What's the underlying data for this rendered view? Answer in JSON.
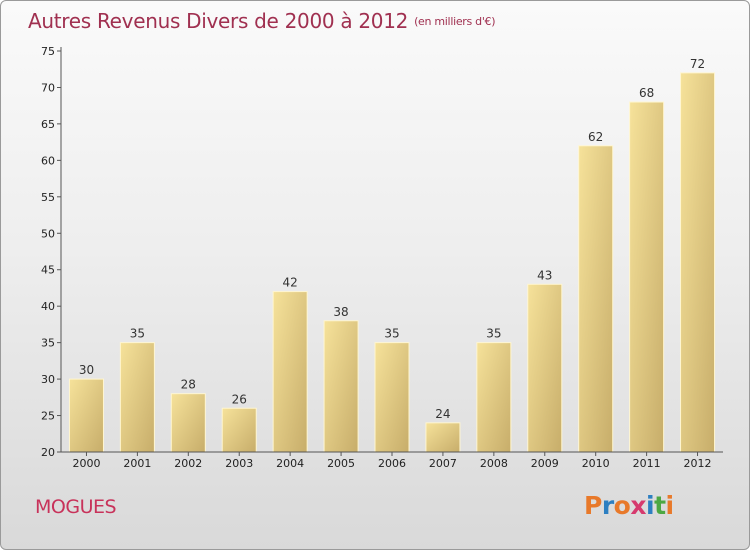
{
  "title": {
    "main": "Autres Revenus Divers de 2000 à 2012",
    "unit": "(en milliers d'€)"
  },
  "place": "MOGUES",
  "logo": {
    "letters": [
      "P",
      "r",
      "o",
      "x",
      "i",
      "t",
      "i"
    ],
    "colors": [
      "#e8792a",
      "#2d7fc1",
      "#e8792a",
      "#d63a6e",
      "#2d7fc1",
      "#4da843",
      "#e8792a"
    ]
  },
  "colors": {
    "title": "#a03050",
    "bar_light": "#f6e29a",
    "bar_dark": "#c7ad6a",
    "axis": "#555555"
  },
  "chart_data": {
    "type": "bar",
    "title": "Autres Revenus Divers de 2000 à 2012",
    "ylabel": "",
    "xlabel": "",
    "categories": [
      "2000",
      "2001",
      "2002",
      "2003",
      "2004",
      "2005",
      "2006",
      "2007",
      "2008",
      "2009",
      "2010",
      "2011",
      "2012"
    ],
    "values": [
      30,
      35,
      28,
      26,
      42,
      38,
      35,
      24,
      35,
      43,
      62,
      68,
      72
    ],
    "yticks": [
      20,
      25,
      30,
      35,
      40,
      45,
      50,
      55,
      60,
      65,
      70,
      75
    ],
    "ylim": [
      20,
      75
    ],
    "grid": false,
    "legend": "none"
  }
}
